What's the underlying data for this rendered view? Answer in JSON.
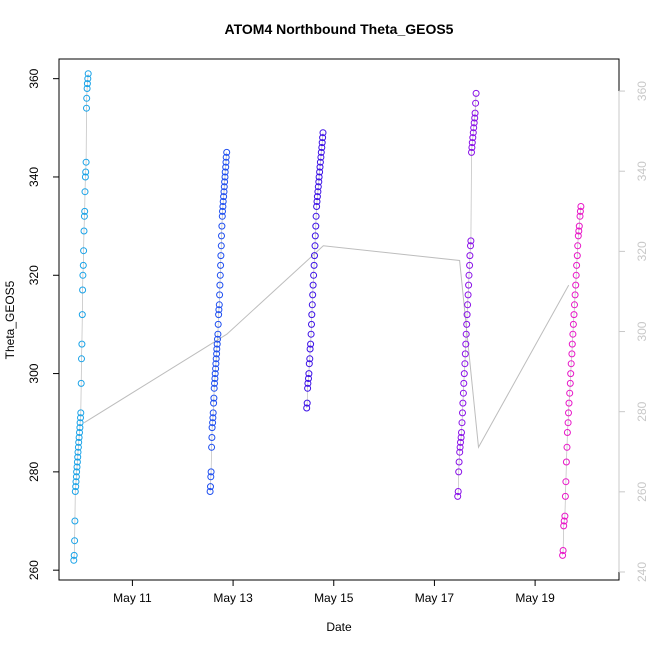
{
  "chart_data": {
    "type": "scatter",
    "title": "ATOM4 Northbound Theta_GEOS5",
    "xlabel": "Date",
    "ylabel": "Theta_GEOS5",
    "xlim": [
      "2016-05-09 13:00",
      "2016-05-20 16:00"
    ],
    "ylim": [
      258,
      364
    ],
    "y2lim": [
      238,
      368
    ],
    "x_ticks": [
      "May 11",
      "May 13",
      "May 15",
      "May 17",
      "May 19"
    ],
    "x_tick_dates": [
      "2016-05-11",
      "2016-05-13",
      "2016-05-15",
      "2016-05-17",
      "2016-05-19"
    ],
    "y_ticks": [
      260,
      280,
      300,
      320,
      340,
      360
    ],
    "y2_ticks": [
      240,
      260,
      280,
      300,
      320,
      340,
      360
    ],
    "grid": false,
    "legend": "none",
    "colors": {
      "connector": "#bdbdbd",
      "right_axis": "#c8c8c8",
      "flights": [
        "#1aa3e8",
        "#1f4ff0",
        "#3d12e6",
        "#8a12e8",
        "#e818c8"
      ]
    },
    "series": [
      {
        "flight_window": [
          "2016-05-09 20:00",
          "2016-05-10 03:00"
        ],
        "values": [
          262,
          263,
          266,
          270,
          276,
          277,
          278,
          279,
          280,
          281,
          282,
          283,
          284,
          285,
          286,
          287,
          288,
          289,
          290,
          291,
          292,
          298,
          303,
          306,
          312,
          317,
          320,
          322,
          325,
          329,
          332,
          333,
          337,
          340,
          341,
          343,
          354,
          356,
          358,
          359,
          360,
          361
        ]
      },
      {
        "flight_window": [
          "2016-05-12 13:00",
          "2016-05-12 21:00"
        ],
        "values": [
          276,
          277,
          279,
          280,
          285,
          287,
          289,
          290,
          291,
          292,
          294,
          295,
          297,
          298,
          299,
          300,
          301,
          302,
          303,
          304,
          305,
          306,
          307,
          308,
          310,
          312,
          313,
          314,
          316,
          318,
          320,
          322,
          324,
          326,
          328,
          330,
          332,
          333,
          334,
          335,
          336,
          337,
          338,
          339,
          340,
          341,
          342,
          343,
          344,
          345
        ]
      },
      {
        "flight_window": [
          "2016-05-14 11:00",
          "2016-05-14 19:00"
        ],
        "values": [
          293,
          294,
          297,
          298,
          299,
          300,
          302,
          303,
          305,
          306,
          308,
          310,
          312,
          314,
          316,
          318,
          320,
          322,
          324,
          326,
          328,
          330,
          332,
          334,
          335,
          336,
          337,
          338,
          339,
          340,
          341,
          342,
          343,
          344,
          345,
          346,
          347,
          348,
          349
        ]
      },
      {
        "flight_window": [
          "2016-05-17 11:00",
          "2016-05-17 20:00"
        ],
        "values": [
          275,
          276,
          280,
          282,
          284,
          285,
          286,
          287,
          288,
          290,
          292,
          294,
          296,
          298,
          300,
          302,
          304,
          306,
          308,
          310,
          312,
          314,
          316,
          318,
          320,
          322,
          324,
          326,
          327,
          345,
          346,
          347,
          348,
          349,
          350,
          351,
          352,
          353,
          355,
          357
        ]
      },
      {
        "flight_window": [
          "2016-05-19 13:00",
          "2016-05-19 22:00"
        ],
        "values": [
          263,
          264,
          269,
          270,
          271,
          275,
          278,
          282,
          285,
          288,
          290,
          292,
          294,
          296,
          298,
          300,
          302,
          304,
          306,
          308,
          310,
          312,
          314,
          316,
          318,
          320,
          322,
          324,
          326,
          328,
          329,
          330,
          332,
          333,
          334
        ]
      }
    ],
    "connector_line": {
      "x": [
        "2016-05-10 01:00",
        "2016-05-12 21:00",
        "2016-05-14 19:00",
        "2016-05-17 12:00",
        "2016-05-17 21:00",
        "2016-05-19 16:00"
      ],
      "y": [
        290,
        308,
        326,
        323,
        285,
        318
      ]
    }
  }
}
